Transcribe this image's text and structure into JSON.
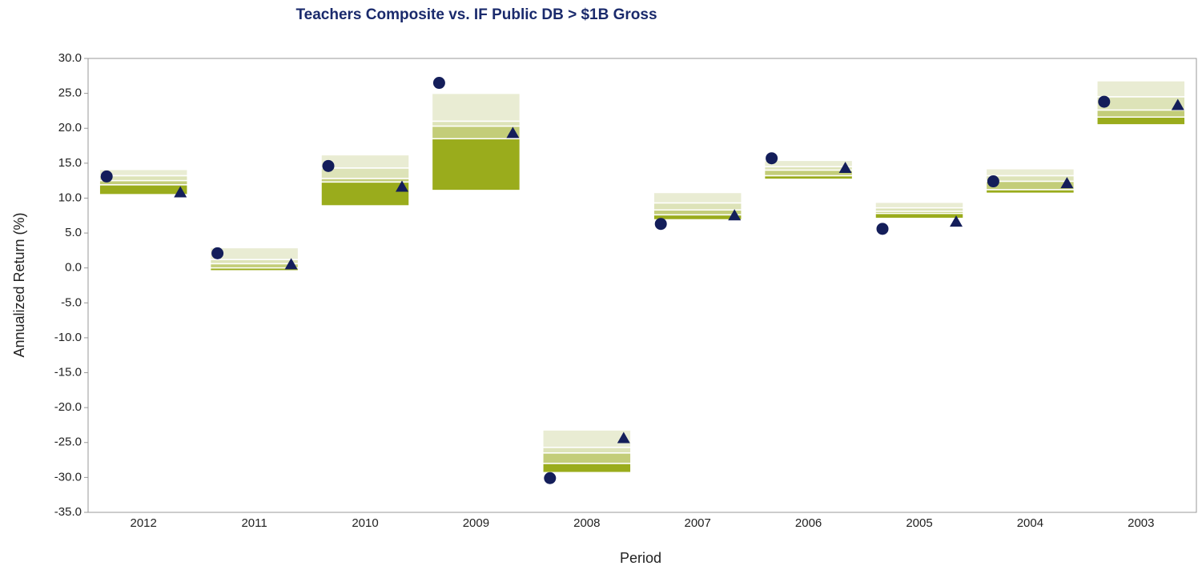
{
  "chart_data": {
    "type": "floating-bar",
    "title": "Teachers Composite vs. IF Public DB > $1B Gross",
    "x_label": "Period",
    "y_label": "Annualized Return (%)",
    "categories": [
      "2012",
      "2011",
      "2010",
      "2009",
      "2008",
      "2007",
      "2006",
      "2005",
      "2004",
      "2003"
    ],
    "bands": {
      "colors": [
        "#e9ecd3",
        "#dde3b8",
        "#c3cd79",
        "#9aac1c"
      ],
      "values": [
        [
          14.1,
          13.2,
          12.5,
          11.9,
          10.5
        ],
        [
          2.9,
          1.2,
          0.6,
          0.0,
          -0.4
        ],
        [
          16.2,
          14.3,
          12.8,
          12.3,
          8.9
        ],
        [
          25.0,
          21.0,
          20.3,
          18.5,
          11.1
        ],
        [
          -23.2,
          -25.7,
          -26.5,
          -28.0,
          -29.3
        ],
        [
          10.8,
          9.3,
          8.3,
          7.6,
          6.9
        ],
        [
          15.4,
          14.5,
          14.0,
          13.2,
          12.7
        ],
        [
          9.4,
          8.6,
          8.1,
          7.8,
          7.1
        ],
        [
          14.2,
          13.2,
          12.4,
          11.2,
          10.7
        ],
        [
          26.8,
          24.5,
          22.6,
          21.6,
          20.5
        ]
      ]
    },
    "series": [
      {
        "marker": "circle",
        "color": "#141e5a",
        "values": [
          13.1,
          2.1,
          14.6,
          26.5,
          -30.1,
          6.3,
          15.7,
          5.6,
          12.4,
          23.8
        ]
      },
      {
        "marker": "triangle",
        "color": "#141e5a",
        "values": [
          10.8,
          0.5,
          11.6,
          19.3,
          -24.4,
          7.5,
          14.3,
          6.6,
          12.1,
          23.3
        ]
      }
    ],
    "ylim": [
      -35,
      30
    ],
    "yticks": [
      {
        "value": -35,
        "label": "-35.0"
      },
      {
        "value": -30,
        "label": "-30.0"
      },
      {
        "value": -25,
        "label": "-25.0"
      },
      {
        "value": -20,
        "label": "-20.0"
      },
      {
        "value": -15,
        "label": "-15.0"
      },
      {
        "value": -10,
        "label": "-10.0"
      },
      {
        "value": -5,
        "label": "-5.0"
      },
      {
        "value": 0,
        "label": "0.0"
      },
      {
        "value": 5,
        "label": "5.0"
      },
      {
        "value": 10,
        "label": "10.0"
      },
      {
        "value": 15,
        "label": "15.0"
      },
      {
        "value": 20,
        "label": "20.0"
      },
      {
        "value": 25,
        "label": "25.0"
      },
      {
        "value": 30,
        "label": "30.0"
      }
    ]
  }
}
